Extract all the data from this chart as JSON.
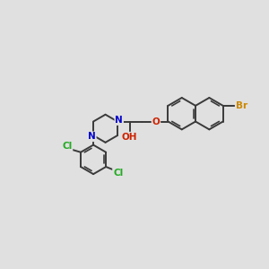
{
  "bg_color": "#e0e0e0",
  "bond_color": "#3a3a3a",
  "bond_width": 1.4,
  "N_color": "#0000cc",
  "O_color": "#cc2200",
  "Cl_color": "#22aa22",
  "Br_color": "#cc8800",
  "figsize": [
    3.0,
    3.0
  ],
  "dpi": 100,
  "xlim": [
    0,
    12
  ],
  "ylim": [
    0,
    12
  ]
}
